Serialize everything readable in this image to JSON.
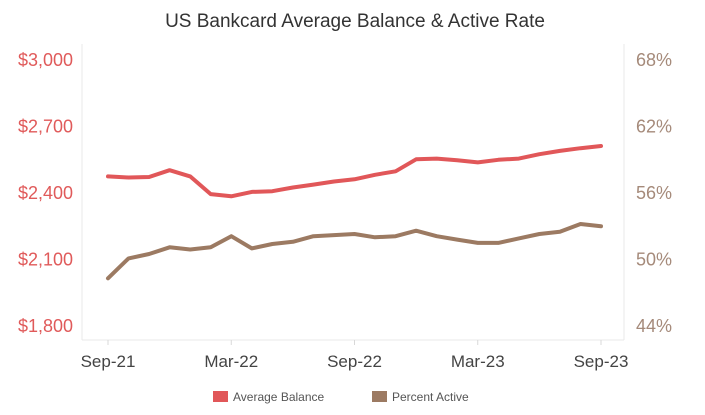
{
  "chart_data": {
    "type": "line",
    "title": "US Bankcard Average Balance & Active Rate",
    "x": [
      "Sep-21",
      "Oct-21",
      "Nov-21",
      "Dec-21",
      "Jan-22",
      "Feb-22",
      "Mar-22",
      "Apr-22",
      "May-22",
      "Jun-22",
      "Jul-22",
      "Aug-22",
      "Sep-22",
      "Oct-22",
      "Nov-22",
      "Dec-22",
      "Jan-23",
      "Feb-23",
      "Mar-23",
      "Apr-23",
      "May-23",
      "Jun-23",
      "Jul-23",
      "Aug-23",
      "Sep-23"
    ],
    "x_tick_labels": [
      "Sep-21",
      "Mar-22",
      "Sep-22",
      "Mar-23",
      "Sep-23"
    ],
    "y_left": {
      "range": [
        1800,
        3000
      ],
      "ticks": [
        "$1,800",
        "$2,100",
        "$2,400",
        "$2,700",
        "$3,000"
      ]
    },
    "y_right": {
      "range": [
        44,
        68
      ],
      "ticks": [
        "44%",
        "50%",
        "56%",
        "62%",
        "68%"
      ]
    },
    "series": [
      {
        "name": "Average Balance",
        "axis": "left",
        "color": "#e15759",
        "values": [
          2475,
          2470,
          2472,
          2503,
          2475,
          2395,
          2385,
          2405,
          2408,
          2425,
          2438,
          2452,
          2462,
          2482,
          2498,
          2552,
          2555,
          2548,
          2538,
          2550,
          2555,
          2575,
          2590,
          2602,
          2612
        ]
      },
      {
        "name": "Percent Active",
        "axis": "right",
        "color": "#9c7a62",
        "values": [
          48.3,
          50.1,
          50.5,
          51.1,
          50.9,
          51.1,
          52.1,
          51.0,
          51.4,
          51.6,
          52.1,
          52.2,
          52.3,
          52.0,
          52.1,
          52.6,
          52.1,
          51.8,
          51.5,
          51.5,
          51.9,
          52.3,
          52.5,
          53.2,
          53.0
        ]
      }
    ],
    "legend": "bottom"
  }
}
